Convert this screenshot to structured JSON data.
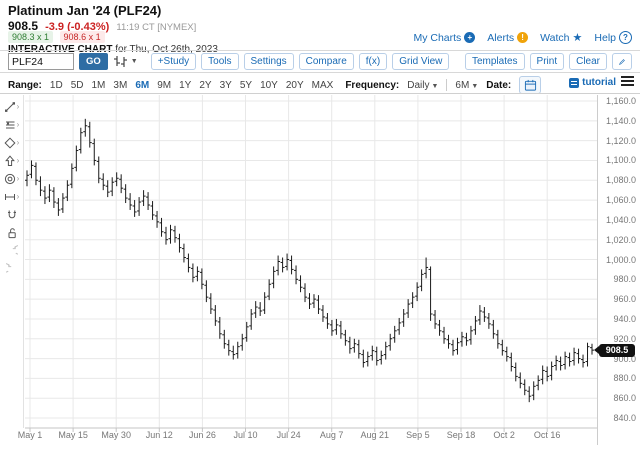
{
  "header": {
    "title": "Platinum Jan '24 (PLF24)",
    "last": "908.5",
    "change": "-3.9 (-0.43%)",
    "quote_time": "11:19 CT [NYMEX]",
    "bid": "908.3 x 1",
    "ask": "908.6 x 1",
    "chart_label": "INTERACTIVE CHART",
    "chart_date": "for Thu, Oct 26th, 2023",
    "links": [
      {
        "label": "My Charts",
        "icon": "plus-circle-icon"
      },
      {
        "label": "Alerts",
        "icon": "alert-circle-icon"
      },
      {
        "label": "Watch",
        "icon": "star-icon"
      },
      {
        "label": "Help",
        "icon": "question-circle-icon"
      }
    ]
  },
  "toolbar": {
    "symbol_value": "PLF24",
    "go_label": "GO",
    "chart_type_icon": "ohlc-bar-type-icon",
    "buttons": [
      "+Study",
      "Tools",
      "Settings",
      "Compare",
      "f(x)",
      "Grid View"
    ],
    "right_buttons": [
      "Templates",
      "Print",
      "Clear"
    ],
    "annotate_icon": "pencil-icon"
  },
  "range_row": {
    "range_label": "Range:",
    "ranges": [
      "1D",
      "5D",
      "1M",
      "3M",
      "6M",
      "9M",
      "1Y",
      "2Y",
      "3Y",
      "5Y",
      "10Y",
      "20Y",
      "MAX"
    ],
    "active_range": "6M",
    "frequency_label": "Frequency:",
    "frequency_value": "Daily",
    "span_value": "6M",
    "date_label": "Date:",
    "tutorial_label": "tutorial"
  },
  "left_tools": [
    {
      "name": "trendline-icon",
      "submenu": true
    },
    {
      "name": "fibonacci-icon",
      "submenu": true
    },
    {
      "name": "shapes-icon",
      "submenu": true
    },
    {
      "name": "arrow-annotation-icon",
      "submenu": true
    },
    {
      "name": "target-icon",
      "submenu": true
    },
    {
      "name": "measure-icon",
      "submenu": true
    },
    {
      "name": "magnet-icon",
      "submenu": false
    },
    {
      "name": "lock-icon",
      "submenu": false
    },
    {
      "name": "undo-icon",
      "submenu": false
    },
    {
      "name": "redo-icon",
      "submenu": false
    }
  ],
  "colors": {
    "accent_blue": "#1a6bb5",
    "change_red": "#cc2222",
    "bid_green": "#2e7d32",
    "ask_red": "#c62828",
    "bar_color": "#1a1a1a",
    "grid_color": "#e8e8e8",
    "axis_text": "#777777",
    "badge_black": "#111111"
  },
  "chart_data": {
    "type": "ohlc-bar",
    "symbol": "PLF24",
    "title": "Platinum Jan '24 (PLF24) Daily, 6M",
    "frequency": "Daily",
    "range": "6M",
    "ylim": [
      840,
      1160
    ],
    "y_tick_step": 20,
    "y_tick_labels": [
      "1,160.0",
      "1,140.0",
      "1,120.0",
      "1,100.0",
      "1,080.0",
      "1,060.0",
      "1,040.0",
      "1,020.0",
      "1,000.0",
      "980.0",
      "960.0",
      "940.0",
      "920.0",
      "900.0",
      "880.0",
      "860.0",
      "840.0"
    ],
    "x_labels": [
      "May 1",
      "May 15",
      "May 30",
      "Jun 12",
      "Jun 26",
      "Jul 10",
      "Jul 24",
      "Aug 7",
      "Aug 21",
      "Sep 5",
      "Sep 18",
      "Oct 2",
      "Oct 16"
    ],
    "grid": true,
    "last_price": 908.5,
    "last_price_label": "908.5",
    "bars_ohlc": [
      [
        1080,
        1090,
        1074,
        1085
      ],
      [
        1086,
        1100,
        1082,
        1095
      ],
      [
        1094,
        1098,
        1075,
        1080
      ],
      [
        1079,
        1084,
        1064,
        1070
      ],
      [
        1069,
        1074,
        1056,
        1062
      ],
      [
        1063,
        1076,
        1058,
        1070
      ],
      [
        1069,
        1073,
        1052,
        1058
      ],
      [
        1057,
        1062,
        1044,
        1050
      ],
      [
        1051,
        1067,
        1047,
        1062
      ],
      [
        1063,
        1080,
        1059,
        1075
      ],
      [
        1076,
        1097,
        1072,
        1092
      ],
      [
        1093,
        1115,
        1089,
        1110
      ],
      [
        1111,
        1133,
        1107,
        1128
      ],
      [
        1129,
        1142,
        1124,
        1135
      ],
      [
        1134,
        1139,
        1113,
        1118
      ],
      [
        1117,
        1122,
        1095,
        1100
      ],
      [
        1099,
        1104,
        1077,
        1082
      ],
      [
        1081,
        1087,
        1070,
        1075
      ],
      [
        1074,
        1080,
        1063,
        1068
      ],
      [
        1069,
        1083,
        1064,
        1078
      ],
      [
        1079,
        1088,
        1074,
        1082
      ],
      [
        1081,
        1086,
        1067,
        1072
      ],
      [
        1071,
        1076,
        1057,
        1062
      ],
      [
        1061,
        1067,
        1050,
        1055
      ],
      [
        1054,
        1060,
        1043,
        1048
      ],
      [
        1049,
        1063,
        1044,
        1058
      ],
      [
        1059,
        1070,
        1054,
        1064
      ],
      [
        1063,
        1068,
        1050,
        1055
      ],
      [
        1054,
        1059,
        1040,
        1045
      ],
      [
        1044,
        1049,
        1032,
        1038
      ],
      [
        1037,
        1042,
        1023,
        1028
      ],
      [
        1027,
        1033,
        1015,
        1020
      ],
      [
        1021,
        1035,
        1016,
        1030
      ],
      [
        1029,
        1034,
        1017,
        1022
      ],
      [
        1021,
        1026,
        1007,
        1012
      ],
      [
        1011,
        1016,
        997,
        1002
      ],
      [
        1001,
        1006,
        987,
        992
      ],
      [
        991,
        996,
        977,
        982
      ],
      [
        983,
        993,
        978,
        988
      ],
      [
        987,
        991,
        970,
        975
      ],
      [
        974,
        979,
        957,
        962
      ],
      [
        961,
        966,
        945,
        950
      ],
      [
        949,
        954,
        933,
        938
      ],
      [
        937,
        942,
        920,
        925
      ],
      [
        924,
        929,
        910,
        915
      ],
      [
        914,
        919,
        903,
        908
      ],
      [
        907,
        913,
        899,
        904
      ],
      [
        905,
        917,
        900,
        912
      ],
      [
        913,
        925,
        908,
        920
      ],
      [
        921,
        937,
        917,
        932
      ],
      [
        933,
        950,
        929,
        945
      ],
      [
        946,
        958,
        941,
        952
      ],
      [
        951,
        957,
        943,
        948
      ],
      [
        949,
        967,
        945,
        962
      ],
      [
        963,
        980,
        959,
        975
      ],
      [
        976,
        993,
        971,
        988
      ],
      [
        989,
        1004,
        984,
        998
      ],
      [
        997,
        1002,
        987,
        992
      ],
      [
        993,
        1006,
        989,
        1000
      ],
      [
        999,
        1004,
        985,
        990
      ],
      [
        989,
        994,
        975,
        980
      ],
      [
        979,
        984,
        967,
        972
      ],
      [
        971,
        976,
        957,
        962
      ],
      [
        961,
        966,
        950,
        955
      ],
      [
        956,
        965,
        951,
        960
      ],
      [
        959,
        964,
        945,
        950
      ],
      [
        949,
        954,
        937,
        942
      ],
      [
        941,
        946,
        930,
        935
      ],
      [
        934,
        939,
        923,
        928
      ],
      [
        929,
        940,
        924,
        934
      ],
      [
        933,
        938,
        920,
        925
      ],
      [
        924,
        929,
        913,
        918
      ],
      [
        917,
        922,
        905,
        910
      ],
      [
        911,
        920,
        906,
        915
      ],
      [
        914,
        919,
        900,
        905
      ],
      [
        904,
        909,
        891,
        896
      ],
      [
        897,
        907,
        892,
        902
      ],
      [
        903,
        913,
        898,
        908
      ],
      [
        907,
        912,
        893,
        898
      ],
      [
        899,
        908,
        894,
        903
      ],
      [
        904,
        917,
        899,
        912
      ],
      [
        913,
        925,
        908,
        920
      ],
      [
        921,
        933,
        916,
        928
      ],
      [
        929,
        941,
        924,
        936
      ],
      [
        937,
        950,
        932,
        945
      ],
      [
        946,
        960,
        941,
        955
      ],
      [
        956,
        967,
        951,
        962
      ],
      [
        963,
        977,
        958,
        972
      ],
      [
        973,
        990,
        968,
        985
      ],
      [
        986,
        1002,
        981,
        992
      ],
      [
        990,
        993,
        938,
        945
      ],
      [
        944,
        949,
        930,
        935
      ],
      [
        934,
        939,
        923,
        928
      ],
      [
        927,
        932,
        915,
        920
      ],
      [
        919,
        924,
        910,
        915
      ],
      [
        914,
        919,
        903,
        908
      ],
      [
        909,
        921,
        904,
        916
      ],
      [
        917,
        927,
        912,
        922
      ],
      [
        921,
        926,
        913,
        918
      ],
      [
        919,
        933,
        914,
        928
      ],
      [
        929,
        943,
        924,
        938
      ],
      [
        939,
        954,
        934,
        948
      ],
      [
        947,
        952,
        937,
        942
      ],
      [
        941,
        946,
        930,
        935
      ],
      [
        934,
        939,
        920,
        925
      ],
      [
        924,
        929,
        910,
        915
      ],
      [
        914,
        919,
        903,
        908
      ],
      [
        907,
        912,
        897,
        902
      ],
      [
        901,
        906,
        887,
        892
      ],
      [
        891,
        896,
        877,
        882
      ],
      [
        881,
        886,
        870,
        875
      ],
      [
        874,
        879,
        863,
        868
      ],
      [
        867,
        872,
        856,
        862
      ],
      [
        863,
        877,
        858,
        872
      ],
      [
        873,
        883,
        868,
        878
      ],
      [
        879,
        893,
        874,
        888
      ],
      [
        887,
        892,
        877,
        882
      ],
      [
        883,
        897,
        878,
        892
      ],
      [
        893,
        903,
        888,
        898
      ],
      [
        897,
        902,
        888,
        893
      ],
      [
        894,
        907,
        889,
        902
      ],
      [
        901,
        906,
        892,
        897
      ],
      [
        898,
        911,
        893,
        906
      ],
      [
        905,
        910,
        895,
        900
      ],
      [
        899,
        904,
        891,
        896
      ],
      [
        897,
        916,
        892,
        912
      ],
      [
        911,
        915,
        904,
        908.5
      ]
    ]
  }
}
